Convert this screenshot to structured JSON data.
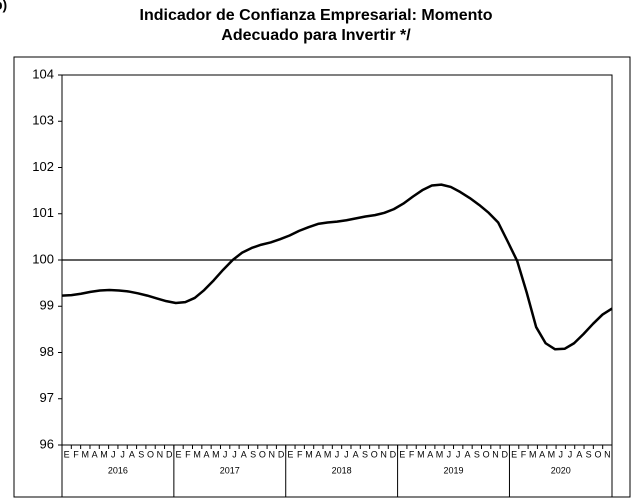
{
  "panel_label": "b)",
  "chart_data": {
    "type": "line",
    "title": [
      "Indicador de Confianza Empresarial: Momento",
      "Adecuado para Invertir */"
    ],
    "categories": [
      "E",
      "F",
      "M",
      "A",
      "M",
      "J",
      "J",
      "A",
      "S",
      "O",
      "N",
      "D",
      "E",
      "F",
      "M",
      "A",
      "M",
      "J",
      "J",
      "A",
      "S",
      "O",
      "N",
      "D",
      "E",
      "F",
      "M",
      "A",
      "M",
      "J",
      "J",
      "A",
      "S",
      "O",
      "N",
      "D",
      "E",
      "F",
      "M",
      "A",
      "M",
      "J",
      "J",
      "A",
      "S",
      "O",
      "N",
      "D",
      "E",
      "F",
      "M",
      "A",
      "M",
      "J",
      "J",
      "A",
      "S",
      "O",
      "N"
    ],
    "years": [
      "2016",
      "2017",
      "2018",
      "2019",
      "2020"
    ],
    "series": [
      {
        "color": "#000000",
        "values": [
          99.23,
          99.24,
          99.27,
          99.31,
          99.34,
          99.35,
          99.34,
          99.32,
          99.28,
          99.23,
          99.17,
          99.11,
          99.07,
          99.09,
          99.18,
          99.35,
          99.56,
          99.79,
          100.0,
          100.16,
          100.26,
          100.33,
          100.38,
          100.45,
          100.53,
          100.63,
          100.71,
          100.78,
          100.81,
          100.83,
          100.86,
          100.9,
          100.94,
          100.97,
          101.02,
          101.1,
          101.22,
          101.37,
          101.51,
          101.61,
          101.63,
          101.58,
          101.47,
          101.34,
          101.19,
          101.02,
          100.81,
          100.4,
          99.98,
          99.3,
          98.55,
          98.2,
          98.07,
          98.08,
          98.2,
          98.4,
          98.62,
          98.82,
          98.95
        ]
      }
    ],
    "reference_line": 100,
    "ylim": [
      96,
      104
    ],
    "yticks": [
      96,
      97,
      98,
      99,
      100,
      101,
      102,
      103,
      104
    ],
    "grid": false
  }
}
